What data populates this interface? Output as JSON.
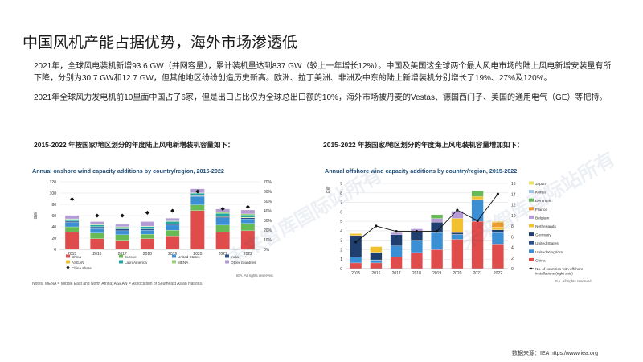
{
  "page": {
    "title": "中国风机产能占据优势，海外市场渗透低",
    "para1": "2021年，全球风电装机新增93.6 GW（并网容量），累计装机量达到837 GW（较上一年增长12%）。中国及美国这全球两个最大风电市场的陆上风电新增安装量有所下降，分别为30.7 GW和12.7 GW，但其他地区纷纷创造历史新高。欧洲、拉丁美洲、非洲及中东的陆上新增装机分别增长了19%、27%及120%。",
    "para2": "2021年全球风力发电机前10里面中国占了6家，但是出口占比仅为全球总出口额的10%，海外市场被丹麦的Vestas、德国西门子、美国的通用电气（GE）等把持。",
    "sub_left": "2015-2022 年按国家/地区划分的年度陆上风电新增装机容量如下：",
    "sub_right": "2015-2022 年按国家/地区划分的年度海上风电装机容量增加如下：",
    "source": "数据来源：IEA https://www.iea.org",
    "watermark": "未来智库国际站所有"
  },
  "chart_data": [
    {
      "type": "bar",
      "title": "Annual onshore wind capacity additions by country/region, 2015-2022",
      "ylabel": "GW",
      "ylim": [
        0,
        120
      ],
      "yticks": [
        "0",
        "20",
        "40",
        "60",
        "80",
        "100",
        "120"
      ],
      "y2lim": [
        0,
        70
      ],
      "y2ticks": [
        "0%",
        "10%",
        "20%",
        "30%",
        "40%",
        "50%",
        "60%",
        "70%"
      ],
      "categories": [
        "2015",
        "2016",
        "2017",
        "2018",
        "2019",
        "2020",
        "2021",
        "2022"
      ],
      "series": [
        {
          "name": "China",
          "color": "#e04b4b",
          "values": [
            31,
            19,
            16,
            19,
            24,
            69,
            31,
            33
          ]
        },
        {
          "name": "Europe",
          "color": "#66bb55",
          "values": [
            9,
            10,
            10,
            8,
            10,
            10,
            12,
            13
          ]
        },
        {
          "name": "United States",
          "color": "#3b8fd4",
          "values": [
            8,
            8,
            7,
            7,
            9,
            15,
            13,
            8
          ]
        },
        {
          "name": "India",
          "color": "#2b4f8c",
          "values": [
            2,
            3,
            3,
            2,
            2,
            1,
            2,
            2
          ]
        },
        {
          "name": "ASEAN",
          "color": "#f2c130",
          "values": [
            0.3,
            0.3,
            0.3,
            0.3,
            0.3,
            0.5,
            0.8,
            1
          ]
        },
        {
          "name": "Latin America",
          "color": "#1fa7a0",
          "values": [
            3,
            3,
            3,
            4,
            4,
            4,
            5,
            4
          ]
        },
        {
          "name": "MENA",
          "color": "#9cd17a",
          "values": [
            1,
            1,
            1,
            1,
            1,
            1,
            2,
            2
          ]
        },
        {
          "name": "Other countries",
          "color": "#b59bd6",
          "values": [
            6,
            5,
            4,
            8,
            5,
            7,
            6,
            7
          ]
        }
      ],
      "markers": {
        "name": "China share",
        "axis": "right",
        "values": [
          52,
          35,
          35,
          38,
          40,
          60,
          42,
          44
        ]
      },
      "legend": [
        "China",
        "Europe",
        "United States",
        "India",
        "ASEAN",
        "Latin America",
        "MENA",
        "Other countries",
        "China share"
      ],
      "legend_position": "bottom",
      "note": "Notes: MENA = Middle East and North Africa; ASEAN = Association of Southeast Asian Nations.",
      "credit": "IEA. All rights reserved."
    },
    {
      "type": "bar",
      "title": "Annual offshore wind capacity additions by country/region, 2015-2022",
      "ylabel": "GW",
      "ylim": [
        0,
        9
      ],
      "yticks": [
        "0",
        "1",
        "2",
        "3",
        "4",
        "5",
        "6",
        "7",
        "8",
        "9"
      ],
      "y2lim": [
        0,
        16
      ],
      "y2ticks": [
        "0",
        "2",
        "4",
        "6",
        "8",
        "10",
        "12",
        "14",
        "16"
      ],
      "categories": [
        "2015",
        "2016",
        "2017",
        "2018",
        "2019",
        "2020",
        "2021",
        "2022"
      ],
      "series": [
        {
          "name": "China",
          "color": "#e04b4b",
          "values": [
            0.6,
            0.6,
            1.2,
            1.7,
            2.0,
            3.1,
            5.0,
            2.6
          ]
        },
        {
          "name": "United Kingdom",
          "color": "#3b8fd4",
          "values": [
            0.6,
            0.3,
            1.2,
            1.3,
            1.8,
            0.5,
            2.3,
            1.2
          ]
        },
        {
          "name": "United States",
          "color": "#2b4f8c",
          "values": [
            0.0,
            0.03,
            0.0,
            0.0,
            0.0,
            0.01,
            0.01,
            0.0
          ]
        },
        {
          "name": "Germany",
          "color": "#1f3f6e",
          "values": [
            2.3,
            0.8,
            1.2,
            0.9,
            1.1,
            0.2,
            0.0,
            0.3
          ]
        },
        {
          "name": "Netherlands",
          "color": "#f2c130",
          "values": [
            0.2,
            0.6,
            0.0,
            0.0,
            0.0,
            1.5,
            0.3,
            0.3
          ]
        },
        {
          "name": "Belgium",
          "color": "#b59bd6",
          "values": [
            0.0,
            0.0,
            0.2,
            0.3,
            0.4,
            0.7,
            0.0,
            0.0
          ]
        },
        {
          "name": "France",
          "color": "#f39c2b",
          "values": [
            0.0,
            0.0,
            0.0,
            0.0,
            0.0,
            0.0,
            0.0,
            0.5
          ]
        },
        {
          "name": "Denmark",
          "color": "#66bb55",
          "values": [
            0.0,
            0.0,
            0.0,
            0.0,
            0.4,
            0.0,
            0.6,
            0.0
          ]
        },
        {
          "name": "Korea",
          "color": "#9ec7ea",
          "values": [
            0.0,
            0.0,
            0.03,
            0.0,
            0.0,
            0.06,
            0.02,
            0.0
          ]
        },
        {
          "name": "Japan",
          "color": "#e9e060",
          "values": [
            0.0,
            0.0,
            0.0,
            0.0,
            0.0,
            0.0,
            0.0,
            0.1
          ]
        }
      ],
      "line": {
        "name": "No. of countries with offshore installations (right axis)",
        "axis": "right",
        "values": [
          5,
          8,
          7,
          7,
          7,
          11,
          9,
          14
        ]
      },
      "legend": [
        "Japan",
        "Korea",
        "Denmark",
        "France",
        "Belgium",
        "Netherlands",
        "Germany",
        "United States",
        "United Kingdom",
        "China",
        "No. of countries with offshore installations (right axis)"
      ],
      "legend_position": "right",
      "credit": "IEA. All rights reserved."
    }
  ]
}
